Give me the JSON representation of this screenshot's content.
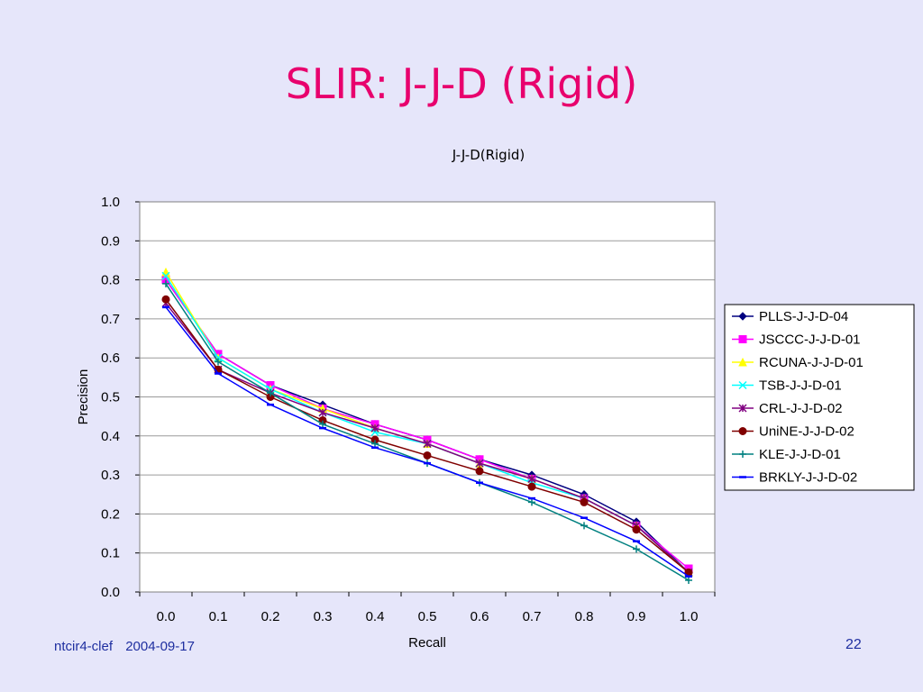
{
  "slide": {
    "title": "SLIR: J-J-D (Rigid)",
    "footer_left": "ntcir4-clef",
    "footer_date": "2004-09-17",
    "page_number": "22"
  },
  "chart_data": {
    "type": "line",
    "title": "J-J-D(Rigid)",
    "xlabel": "Recall",
    "ylabel": "Precision",
    "categories": [
      "0.0",
      "0.1",
      "0.2",
      "0.3",
      "0.4",
      "0.5",
      "0.6",
      "0.7",
      "0.8",
      "0.9",
      "1.0"
    ],
    "y_ticks": [
      "0.0",
      "0.1",
      "0.2",
      "0.3",
      "0.4",
      "0.5",
      "0.6",
      "0.7",
      "0.8",
      "0.9",
      "1.0"
    ],
    "ylim": [
      0,
      1
    ],
    "grid": true,
    "legend_position": "right",
    "series": [
      {
        "name": "PLLS-J-J-D-04",
        "color": "#000080",
        "marker": "diamond",
        "values": [
          0.8,
          0.61,
          0.53,
          0.48,
          0.43,
          0.39,
          0.34,
          0.3,
          0.25,
          0.18,
          0.05
        ]
      },
      {
        "name": "JSCCC-J-J-D-01",
        "color": "#ff00ff",
        "marker": "square",
        "values": [
          0.8,
          0.61,
          0.53,
          0.47,
          0.43,
          0.39,
          0.34,
          0.29,
          0.24,
          0.17,
          0.06
        ]
      },
      {
        "name": "RCUNA-J-J-D-01",
        "color": "#ffff00",
        "marker": "triangle",
        "values": [
          0.82,
          0.6,
          0.52,
          0.47,
          0.42,
          0.38,
          0.33,
          0.29,
          0.24,
          0.17,
          0.05
        ]
      },
      {
        "name": "TSB-J-J-D-01",
        "color": "#00ffff",
        "marker": "x",
        "values": [
          0.81,
          0.6,
          0.52,
          0.46,
          0.41,
          0.38,
          0.33,
          0.28,
          0.24,
          0.17,
          0.05
        ]
      },
      {
        "name": "CRL-J-J-D-02",
        "color": "#800080",
        "marker": "star",
        "values": [
          0.74,
          0.57,
          0.51,
          0.46,
          0.42,
          0.38,
          0.33,
          0.29,
          0.24,
          0.17,
          0.05
        ]
      },
      {
        "name": "UniNE-J-J-D-02",
        "color": "#800000",
        "marker": "circle",
        "values": [
          0.75,
          0.57,
          0.5,
          0.44,
          0.39,
          0.35,
          0.31,
          0.27,
          0.23,
          0.16,
          0.05
        ]
      },
      {
        "name": "KLE-J-J-D-01",
        "color": "#008080",
        "marker": "plus",
        "values": [
          0.79,
          0.59,
          0.51,
          0.43,
          0.38,
          0.33,
          0.28,
          0.23,
          0.17,
          0.11,
          0.03
        ]
      },
      {
        "name": "BRKLY-J-J-D-02",
        "color": "#0000ff",
        "marker": "dash",
        "values": [
          0.73,
          0.56,
          0.48,
          0.42,
          0.37,
          0.33,
          0.28,
          0.24,
          0.19,
          0.13,
          0.04
        ]
      }
    ]
  }
}
